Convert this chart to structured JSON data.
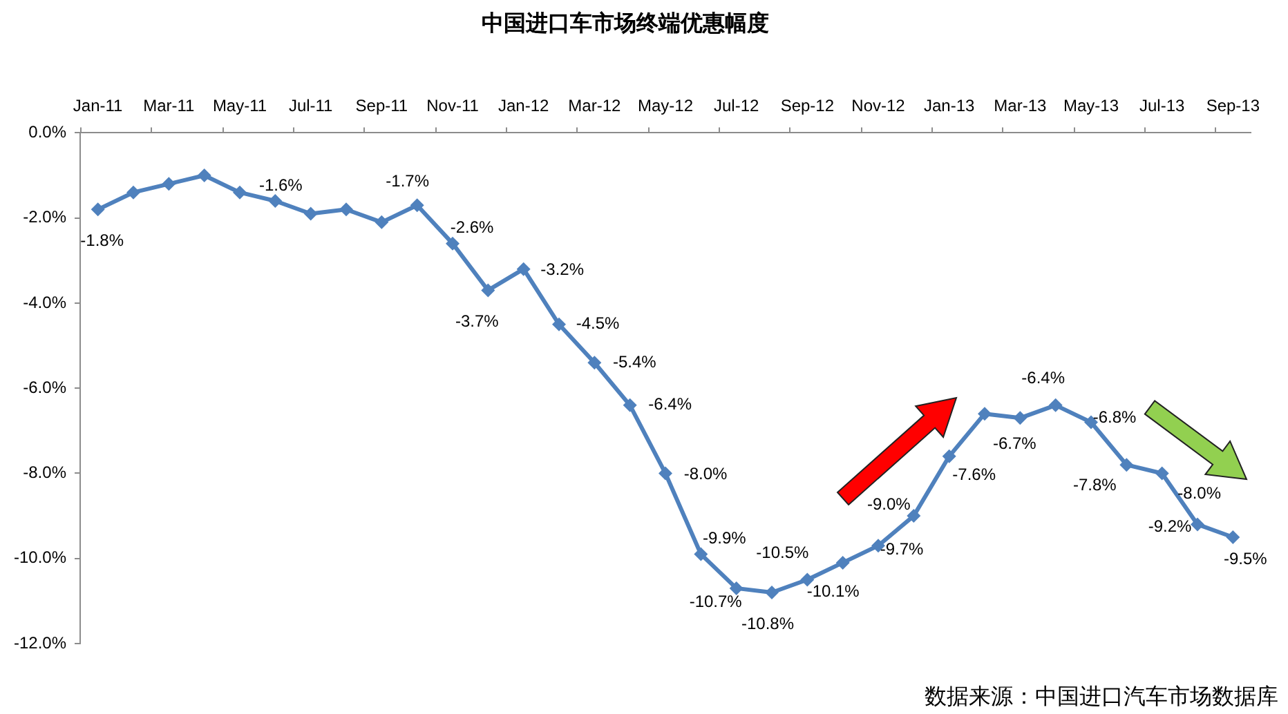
{
  "chart_data": {
    "type": "line",
    "title": "中国进口车市场终端优惠幅度",
    "categories": [
      "Jan-11",
      null,
      "Mar-11",
      null,
      "May-11",
      null,
      "Jul-11",
      null,
      "Sep-11",
      null,
      "Nov-11",
      null,
      "Jan-12",
      null,
      "Mar-12",
      null,
      "May-12",
      null,
      "Jul-12",
      null,
      "Sep-12",
      null,
      "Nov-12",
      null,
      "Jan-13",
      null,
      "Mar-13",
      null,
      "May-13",
      null,
      "Jul-13",
      null,
      "Sep-13"
    ],
    "values": [
      -1.8,
      -1.4,
      -1.2,
      -1.0,
      -1.4,
      -1.6,
      -1.9,
      -1.8,
      -2.1,
      -1.7,
      -2.6,
      -3.7,
      -3.2,
      -4.5,
      -5.4,
      -6.4,
      -8.0,
      -9.9,
      -10.7,
      -10.8,
      -10.5,
      -10.1,
      -9.7,
      -9.0,
      -7.6,
      -6.6,
      -6.7,
      -6.4,
      -6.8,
      -7.8,
      -8.0,
      -9.2,
      -9.5
    ],
    "value_labels": [
      "-1.8%",
      null,
      null,
      null,
      null,
      "-1.6%",
      null,
      null,
      null,
      "-1.7%",
      "-2.6%",
      "-3.7%",
      "-3.2%",
      "-4.5%",
      "-5.4%",
      "-6.4%",
      "-8.0%",
      "-9.9%",
      "-10.7%",
      "-10.8%",
      "-10.5%",
      "-10.1%",
      "-9.7%",
      "-9.0%",
      "-7.6%",
      null,
      "-6.7%",
      "-6.4%",
      "-6.8%",
      "-7.8%",
      "-8.0%",
      "-9.2%",
      "-9.5%"
    ],
    "color": "#4f81bd",
    "marker": "diamond",
    "line_style": "solid",
    "ylim": [
      -12,
      0
    ],
    "yticks": [
      {
        "value": 0,
        "label": "0.0%"
      },
      {
        "value": -2,
        "label": "-2.0%"
      },
      {
        "value": -4,
        "label": "-4.0%"
      },
      {
        "value": -6,
        "label": "-6.0%"
      },
      {
        "value": -8,
        "label": "-8.0%"
      },
      {
        "value": -10,
        "label": "-10.0%"
      },
      {
        "value": -12,
        "label": "-12.0%"
      }
    ],
    "annotations": [
      "数据来源：中国进口汽车市场数据库"
    ]
  }
}
